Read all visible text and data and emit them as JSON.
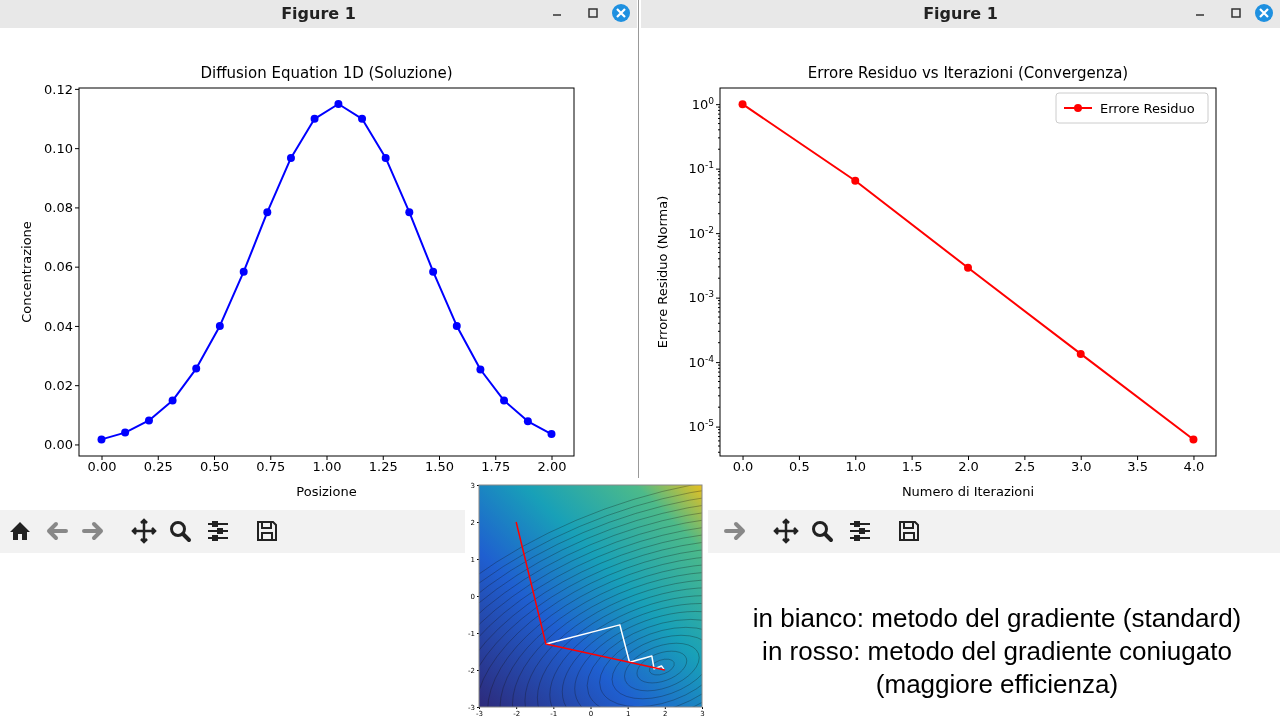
{
  "chart_data": [
    {
      "type": "line",
      "title": "Diffusion Equation 1D (Soluzione)",
      "xlabel": "Posizione",
      "ylabel": "Concentrazione",
      "annotations": [
        "Figure 1"
      ],
      "x": [
        0,
        0.105,
        0.211,
        0.316,
        0.421,
        0.526,
        0.632,
        0.737,
        0.842,
        0.947,
        1.053,
        1.158,
        1.263,
        1.368,
        1.474,
        1.579,
        1.684,
        1.789,
        1.895,
        2.0
      ],
      "series": [
        {
          "color": "#0000ff",
          "values": [
            0.0017,
            0.004,
            0.0081,
            0.0148,
            0.0256,
            0.04,
            0.0583,
            0.0784,
            0.0967,
            0.1099,
            0.1149,
            0.1099,
            0.0967,
            0.0784,
            0.0583,
            0.04,
            0.0253,
            0.0148,
            0.0078,
            0.0035
          ]
        }
      ],
      "xlim": [
        -0.1,
        2.1
      ],
      "ylim": [
        -0.0039,
        0.1203
      ],
      "xticks": [
        {
          "value": 0,
          "label": "0.00"
        },
        {
          "value": 0.25,
          "label": "0.25"
        },
        {
          "value": 0.5,
          "label": "0.50"
        },
        {
          "value": 0.75,
          "label": "0.75"
        },
        {
          "value": 1,
          "label": "1.00"
        },
        {
          "value": 1.25,
          "label": "1.25"
        },
        {
          "value": 1.5,
          "label": "1.50"
        },
        {
          "value": 1.75,
          "label": "1.75"
        },
        {
          "value": 2,
          "label": "2.00"
        }
      ],
      "yticks": [
        {
          "value": 0,
          "label": "0.00"
        },
        {
          "value": 0.02,
          "label": "0.02"
        },
        {
          "value": 0.04,
          "label": "0.04"
        },
        {
          "value": 0.06,
          "label": "0.06"
        },
        {
          "value": 0.08,
          "label": "0.08"
        },
        {
          "value": 0.1,
          "label": "0.10"
        },
        {
          "value": 0.12,
          "label": "0.12"
        }
      ],
      "marker": "circle",
      "line_style": "solid"
    },
    {
      "type": "line",
      "title": "Errore Residuo vs Iterazioni (Convergenza)",
      "xlabel": "Numero di Iterazioni",
      "ylabel": "Errore Residuo (Norma)",
      "annotations": [
        "Figure 1"
      ],
      "x": [
        0,
        1,
        2,
        3,
        4
      ],
      "series": [
        {
          "name": "Errore Residuo",
          "color": "#ff0000",
          "values": [
            1,
            0.065,
            0.0029,
            0.000134,
            6.3e-06
          ]
        }
      ],
      "xlim": [
        -0.2,
        4.2
      ],
      "ylim": [
        3.5e-06,
        1.78
      ],
      "log": true,
      "xticks": [
        {
          "value": 0,
          "label": "0.0"
        },
        {
          "value": 0.5,
          "label": "0.5"
        },
        {
          "value": 1,
          "label": "1.0"
        },
        {
          "value": 1.5,
          "label": "1.5"
        },
        {
          "value": 2,
          "label": "2.0"
        },
        {
          "value": 2.5,
          "label": "2.5"
        },
        {
          "value": 3,
          "label": "3.0"
        },
        {
          "value": 3.5,
          "label": "3.5"
        },
        {
          "value": 4,
          "label": "4.0"
        }
      ],
      "yticks": [
        {
          "value": 1,
          "label": "10$^{0}$"
        },
        {
          "value": 0.1,
          "label": "10$^{-1}$"
        },
        {
          "value": 0.01,
          "label": "10$^{-2}$"
        },
        {
          "value": 0.001,
          "label": "10$^{-3}$"
        },
        {
          "value": 0.0001,
          "label": "10$^{-4}$"
        },
        {
          "value": 1e-05,
          "label": "10$^{-5}$"
        }
      ],
      "legend": "top right",
      "marker": "circle",
      "line_style": "solid"
    },
    {
      "type": "line",
      "series": [
        {
          "color": "#ffffff",
          "x": [
            -1.2,
            0.79,
            1.05,
            1.65,
            1.71,
            1.91,
            1.98
          ],
          "values": [
            -1.3,
            -0.78,
            -1.79,
            -1.62,
            -1.97,
            -1.89,
            -1.99
          ]
        },
        {
          "color": "#ff0000",
          "x": [
            -2,
            -1.2,
            2
          ],
          "values": [
            2,
            -1.3,
            -2
          ]
        }
      ],
      "xlim": [
        -3,
        3
      ],
      "ylim": [
        -3,
        3
      ],
      "xticks": [
        -3,
        -2,
        -1,
        0,
        1,
        2,
        3
      ],
      "yticks": [
        -3,
        -2,
        -1,
        0,
        1,
        2,
        3
      ],
      "line_style": "solid"
    },
    {
      "type": "other",
      "annotations": [
        "in bianco: metodo del gradiente (standard)",
        "in rosso: metodo del gradiente coniugato",
        "(maggiore efficienza)"
      ]
    }
  ]
}
